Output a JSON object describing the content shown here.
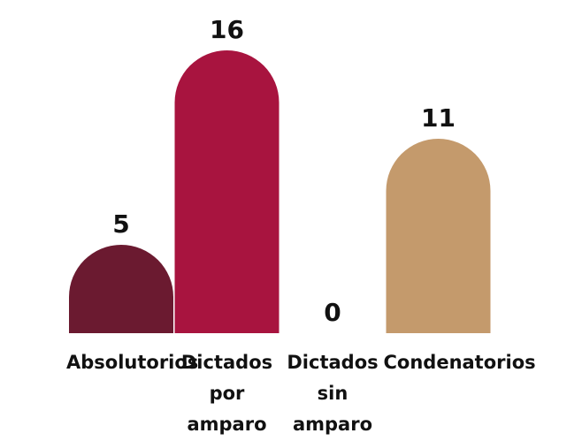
{
  "chart_data": {
    "type": "bar",
    "categories": [
      "Absolutorios",
      "Dictados por amparo",
      "Dictados sin amparo",
      "Condenatorios"
    ],
    "values": [
      5,
      16,
      0,
      11
    ],
    "colors": [
      "#6b1a30",
      "#a8143f",
      "#8a8a8a",
      "#c49a6c"
    ]
  }
}
